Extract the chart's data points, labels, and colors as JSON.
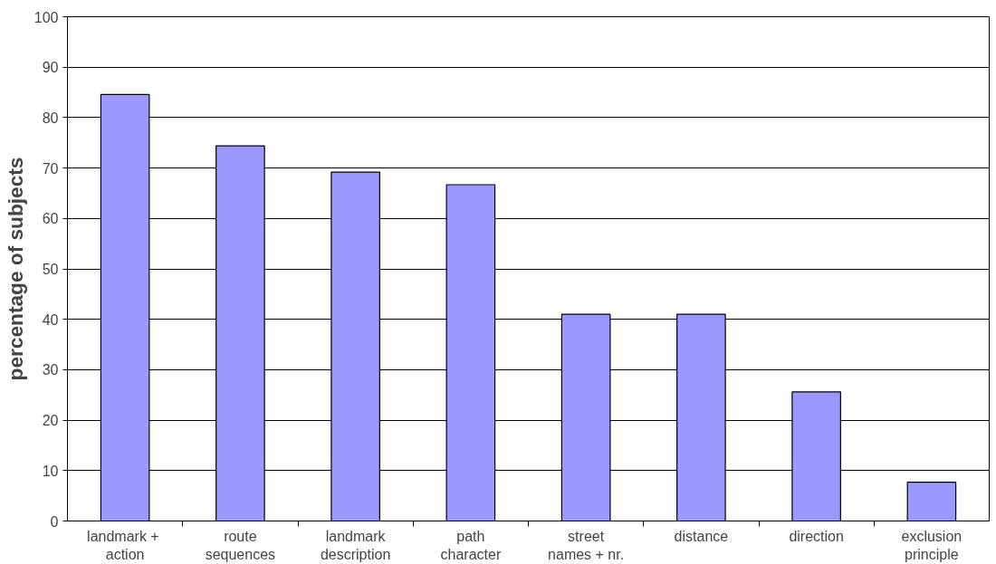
{
  "chart_data": {
    "type": "bar",
    "ylabel": "percentage of subjects",
    "categories": [
      "landmark  +\naction",
      "route\nsequences",
      "landmark\ndescription",
      "path\ncharacter",
      "street\nnames + nr.",
      "distance",
      "direction",
      "exclusion\nprinciple"
    ],
    "values": [
      84.6,
      74.4,
      69.2,
      66.7,
      41.0,
      41.0,
      25.6,
      7.7
    ],
    "color": "#9999ff",
    "ylim": [
      0,
      100
    ],
    "yticks": [
      0,
      10,
      20,
      30,
      40,
      50,
      60,
      70,
      80,
      90,
      100
    ],
    "grid": "y"
  }
}
